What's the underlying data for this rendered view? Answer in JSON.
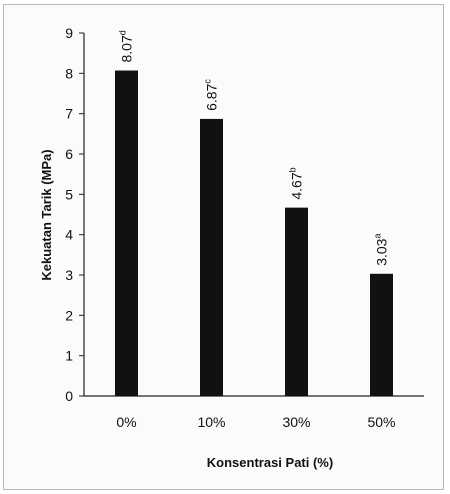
{
  "chart_data": {
    "type": "bar",
    "categories": [
      "0%",
      "10%",
      "30%",
      "50%"
    ],
    "values": [
      8.07,
      6.87,
      4.67,
      3.03
    ],
    "data_labels": [
      {
        "value": "8.07",
        "superscript": "d"
      },
      {
        "value": "6.87",
        "superscript": "c"
      },
      {
        "value": "4.67",
        "superscript": "b"
      },
      {
        "value": "3.03",
        "superscript": "a"
      }
    ],
    "title": "",
    "xlabel": "Konsentrasi Pati (%)",
    "ylabel": "Kekuatan Tarik (MPa)",
    "ylim": [
      0,
      9
    ],
    "yticks": [
      "0",
      "1",
      "2",
      "3",
      "4",
      "5",
      "6",
      "7",
      "8",
      "9"
    ],
    "grid": false,
    "legend": "none",
    "bar_color": "#111111"
  }
}
